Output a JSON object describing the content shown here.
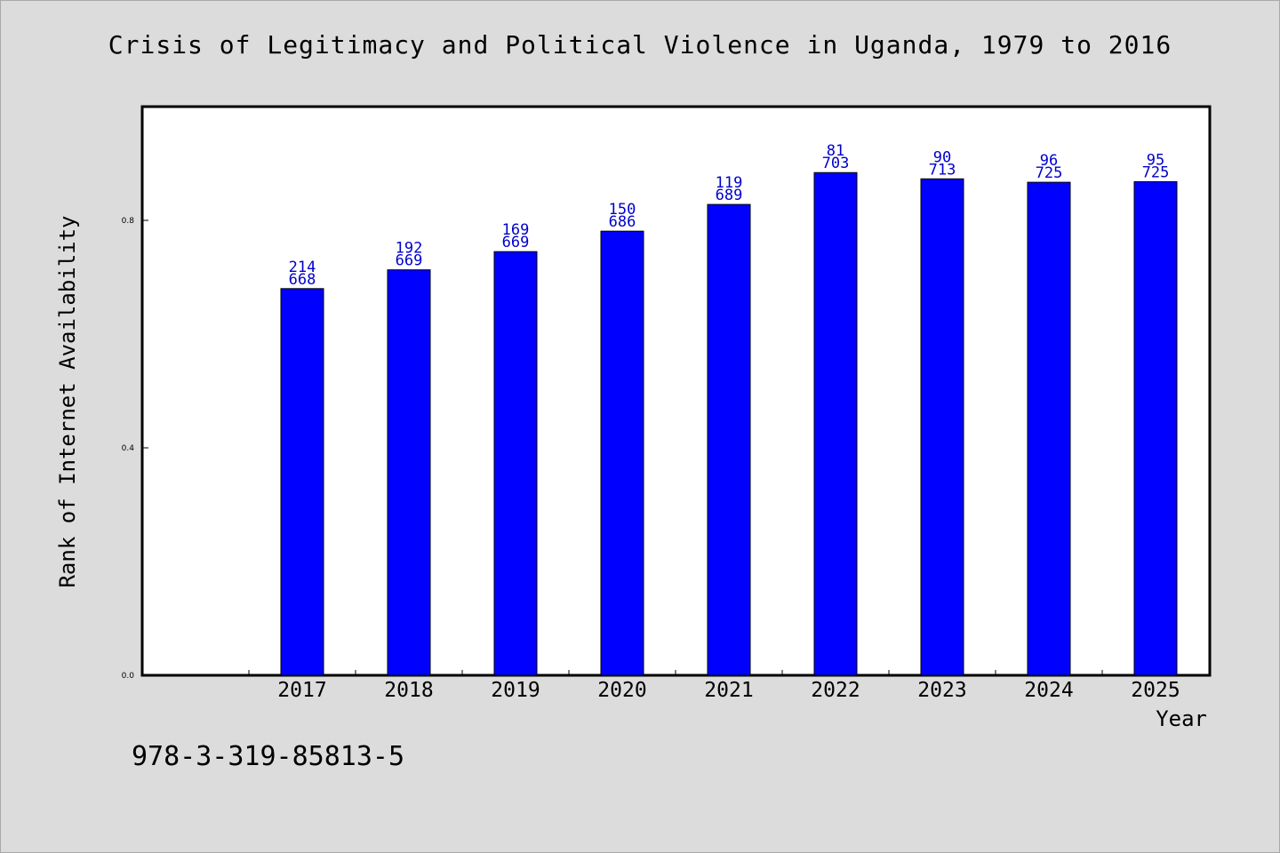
{
  "title": "Crisis of Legitimacy and Political Violence in Uganda, 1979 to 2016",
  "isbn": "978-3-319-85813-5",
  "colors": {
    "background": "#dcdcdc",
    "plot": "#ffffff",
    "bar": "#0000ff",
    "label": "#0000cc"
  },
  "chart_data": {
    "type": "bar",
    "xlabel": "Year",
    "ylabel": "Rank of Internet Availability",
    "ylim": [
      0,
      1.0
    ],
    "yticks": [
      "0.0",
      "0.4",
      "0.8"
    ],
    "categories": [
      "2017",
      "2018",
      "2019",
      "2020",
      "2021",
      "2022",
      "2023",
      "2024",
      "2025"
    ],
    "values": [
      0.68,
      0.713,
      0.745,
      0.781,
      0.828,
      0.884,
      0.873,
      0.867,
      0.868
    ],
    "labels_top": [
      "214",
      "192",
      "169",
      "150",
      "119",
      "81",
      "90",
      "96",
      "95"
    ],
    "labels_bottom": [
      "668",
      "669",
      "669",
      "686",
      "689",
      "703",
      "713",
      "725",
      "725"
    ],
    "grid": false,
    "legend": "none"
  }
}
